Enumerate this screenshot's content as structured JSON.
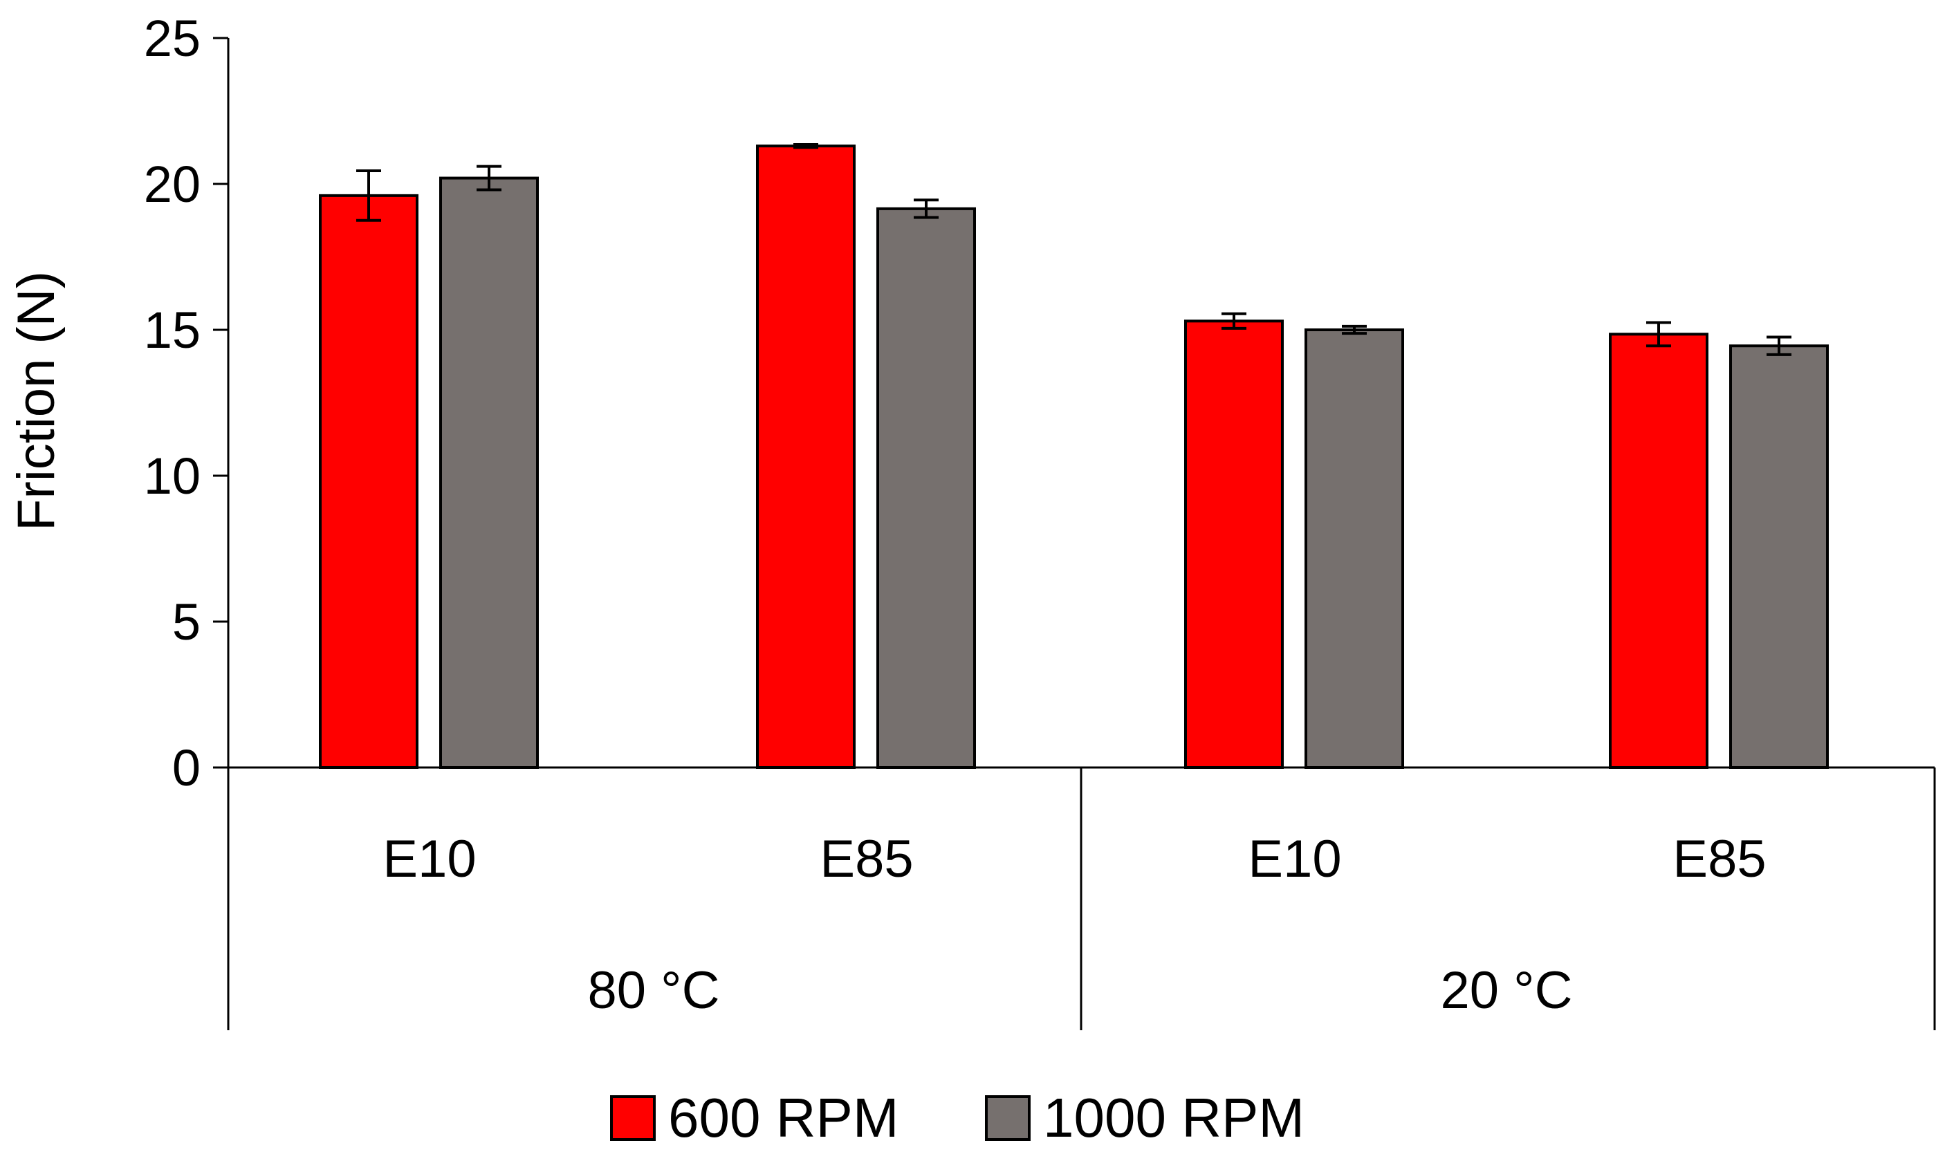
{
  "chart_data": {
    "type": "bar",
    "title": "",
    "xlabel": "",
    "ylabel": "Friction (N)",
    "ylim": [
      0,
      25
    ],
    "yticks": [
      0,
      5,
      10,
      15,
      20,
      25
    ],
    "grid": false,
    "legend_position": "bottom",
    "groups": [
      {
        "label": "80 °C",
        "categories": [
          "E10",
          "E85"
        ]
      },
      {
        "label": "20 °C",
        "categories": [
          "E10",
          "E85"
        ]
      }
    ],
    "categories": [
      "E10",
      "E85",
      "E10",
      "E85"
    ],
    "series": [
      {
        "name": "600 RPM",
        "color": "#ff0000",
        "values": [
          19.6,
          21.3,
          15.3,
          14.85
        ],
        "errors": [
          0.85,
          0.05,
          0.25,
          0.4
        ]
      },
      {
        "name": "1000 RPM",
        "color": "#76706e",
        "values": [
          20.2,
          19.15,
          15.0,
          14.45
        ],
        "errors": [
          0.4,
          0.3,
          0.12,
          0.3
        ]
      }
    ]
  }
}
